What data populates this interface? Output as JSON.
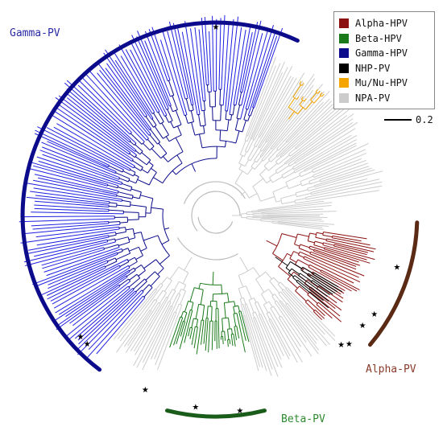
{
  "legend": {
    "items": [
      {
        "label": "Alpha-HPV",
        "color": "#8b1111"
      },
      {
        "label": "Beta-HPV",
        "color": "#1a7a1a"
      },
      {
        "label": "Gamma-HPV",
        "color": "#0b0b8c"
      },
      {
        "label": "NHP-PV",
        "color": "#000000"
      },
      {
        "label": "Mu/Nu-HPV",
        "color": "#f5a500"
      },
      {
        "label": "NPA-PV",
        "color": "#cccccc"
      }
    ]
  },
  "scale_bar": {
    "label": "0.2"
  },
  "clades": {
    "gamma": {
      "label": "Gamma-PV",
      "color": "#2a2aa6",
      "arc_color": "#0b0b8c"
    },
    "beta": {
      "label": "Beta-PV",
      "color": "#2e8b2e",
      "arc_color": "#1a5c1a"
    },
    "alpha": {
      "label": "Alpha-PV",
      "color": "#8b3a2a",
      "arc_color": "#5a2a14"
    }
  },
  "marker_symbol": "★"
}
